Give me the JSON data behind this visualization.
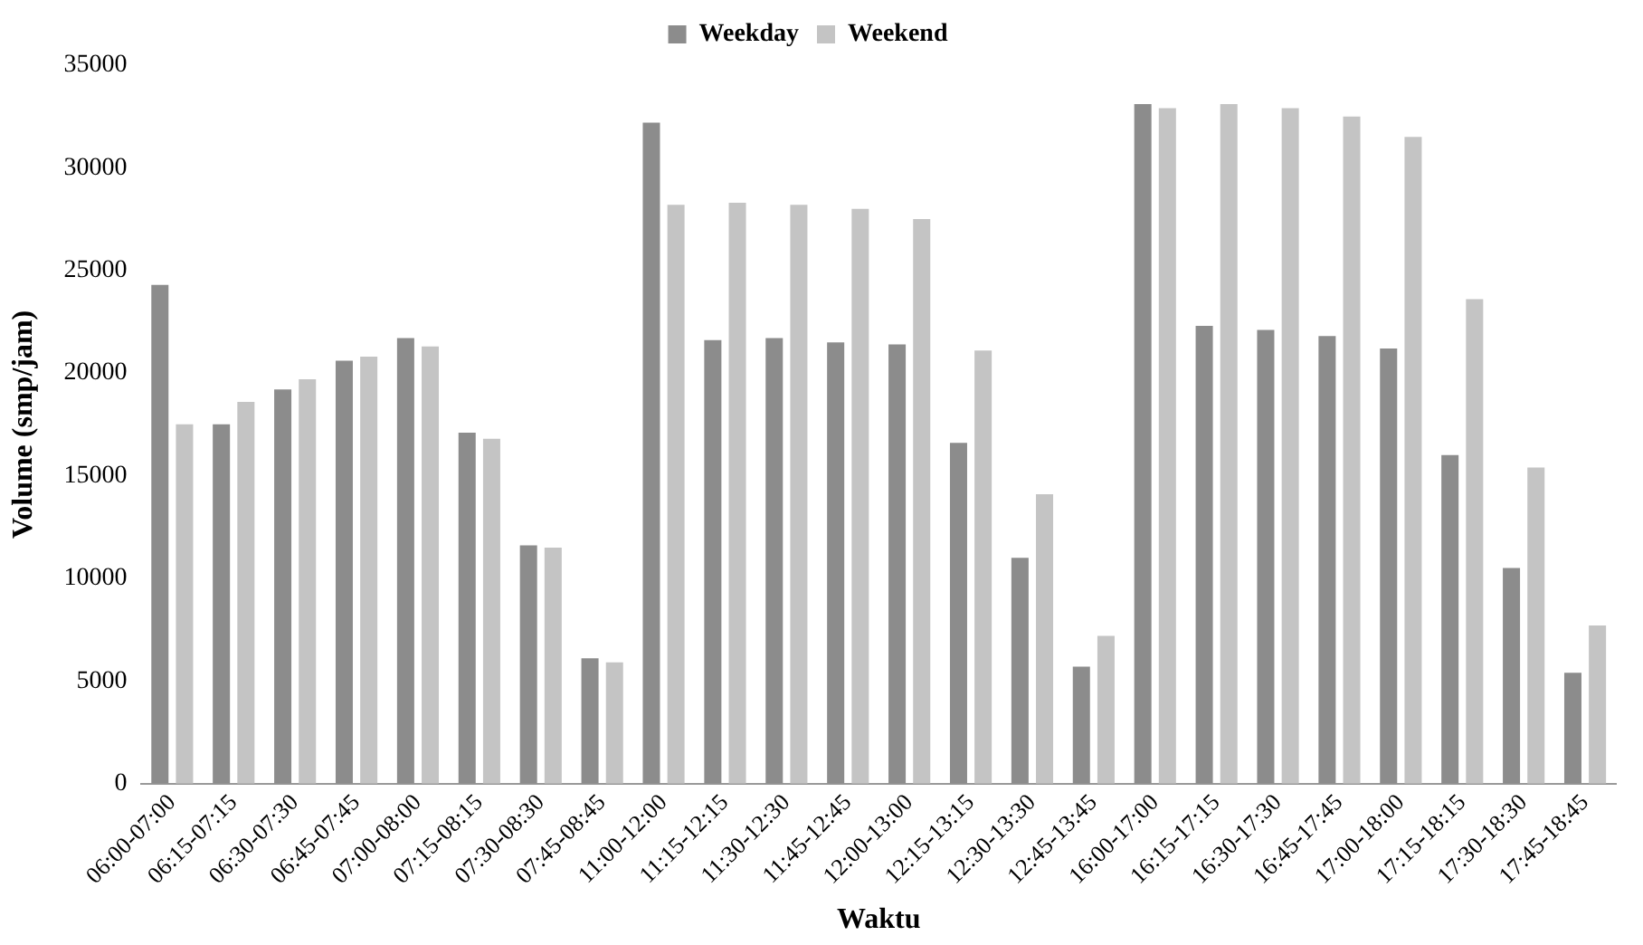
{
  "chart_data": {
    "type": "bar",
    "xlabel": "Waktu",
    "ylabel": "Volume (smp/jam)",
    "categories": [
      "06:00-07:00",
      "06:15-07:15",
      "06:30-07:30",
      "06:45-07:45",
      "07:00-08:00",
      "07:15-08:15",
      "07:30-08:30",
      "07:45-08:45",
      "11:00-12:00",
      "11:15-12:15",
      "11:30-12:30",
      "11:45-12:45",
      "12:00-13:00",
      "12:15-13:15",
      "12:30-13:30",
      "12:45-13:45",
      "16:00-17:00",
      "16:15-17:15",
      "16:30-17:30",
      "16:45-17:45",
      "17:00-18:00",
      "17:15-18:15",
      "17:30-18:30",
      "17:45-18:45"
    ],
    "series": [
      {
        "name": "Weekday",
        "color": "#8c8c8c",
        "values": [
          24300,
          17500,
          19200,
          20600,
          21700,
          17100,
          11600,
          6100,
          32200,
          21600,
          21700,
          21500,
          21400,
          16600,
          11000,
          5700,
          33100,
          22300,
          22100,
          21800,
          21200,
          16000,
          10500,
          5400
        ]
      },
      {
        "name": "Weekend",
        "color": "#c4c4c4",
        "values": [
          17500,
          18600,
          19700,
          20800,
          21300,
          16800,
          11500,
          5900,
          28200,
          28300,
          28200,
          28000,
          27500,
          21100,
          14100,
          7200,
          32900,
          33100,
          32900,
          32500,
          31500,
          23600,
          15400,
          7700
        ]
      }
    ],
    "ylim": [
      0,
      35000
    ],
    "yticks": [
      0,
      5000,
      10000,
      15000,
      20000,
      25000,
      30000,
      35000
    ],
    "grid": false,
    "legend": "top"
  }
}
